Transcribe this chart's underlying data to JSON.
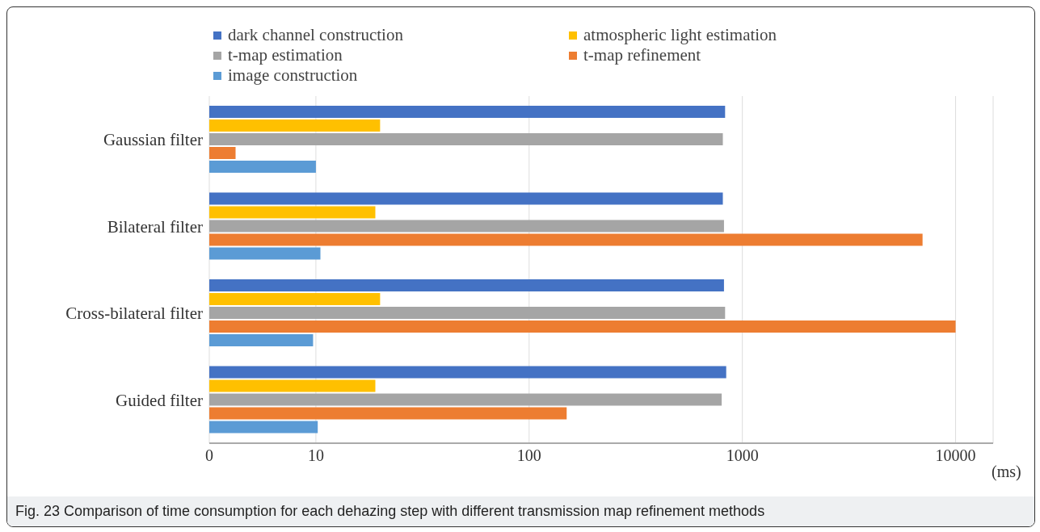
{
  "chart_data": {
    "type": "bar",
    "orientation": "horizontal",
    "log": "x",
    "categories": [
      "Gaussian filter",
      "Bilateral filter",
      "Cross-bilateral filter",
      "Guided filter"
    ],
    "series": [
      {
        "name": "dark channel construction",
        "color": "#4472c4",
        "values": [
          830,
          810,
          820,
          840
        ]
      },
      {
        "name": "atmospheric light estimation",
        "color": "#ffc000",
        "values": [
          20,
          19,
          20,
          19
        ]
      },
      {
        "name": "t-map estimation",
        "color": "#a5a5a5",
        "values": [
          810,
          820,
          830,
          800
        ]
      },
      {
        "name": "t-map refinement",
        "color": "#ed7d31",
        "values": [
          4.2,
          7000,
          10000,
          150
        ]
      },
      {
        "name": "image construction",
        "color": "#5b9bd5",
        "values": [
          10,
          10.5,
          9.7,
          10.2
        ]
      }
    ],
    "xlim": [
      0,
      15000
    ],
    "xticks": [
      0,
      10,
      100,
      1000,
      10000
    ],
    "xlabel": "(ms)",
    "grid": "x",
    "legend": "top",
    "annotations": [
      "Fig. 23 Comparison of time consumption for each dehazing step with different transmission map refinement methods"
    ]
  }
}
